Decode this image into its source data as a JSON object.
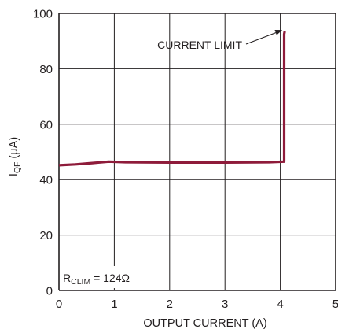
{
  "chart_data": {
    "type": "line",
    "title": "",
    "xlabel": "OUTPUT CURRENT (A)",
    "ylabel_main": "I",
    "ylabel_sub": "QF",
    "ylabel_unit": " (µA)",
    "xlim": [
      0,
      5
    ],
    "ylim": [
      0,
      100
    ],
    "x_ticks": [
      0,
      1,
      2,
      3,
      4,
      5
    ],
    "y_ticks": [
      0,
      20,
      40,
      60,
      80,
      100
    ],
    "x_tick_labels": [
      "0",
      "1",
      "2",
      "3",
      "4",
      "5"
    ],
    "y_tick_labels": [
      "0",
      "20",
      "40",
      "60",
      "80",
      "100"
    ],
    "grid": true,
    "series": [
      {
        "x": [
          0,
          0.3,
          0.6,
          0.9,
          1.2,
          2.0,
          3.0,
          3.8,
          4.07,
          4.07,
          4.08
        ],
        "y": [
          45.2,
          45.5,
          46.0,
          46.5,
          46.3,
          46.2,
          46.2,
          46.3,
          46.5,
          92.5,
          93.5
        ]
      }
    ],
    "annotation": {
      "text": "CURRENT LIMIT",
      "target": [
        4.05,
        94
      ]
    },
    "rclim_label": {
      "main": "R",
      "sub": "CLIM",
      "rest": " = 124Ω"
    },
    "line_color": "#8e1b3a",
    "grid_color": "#231f20"
  }
}
